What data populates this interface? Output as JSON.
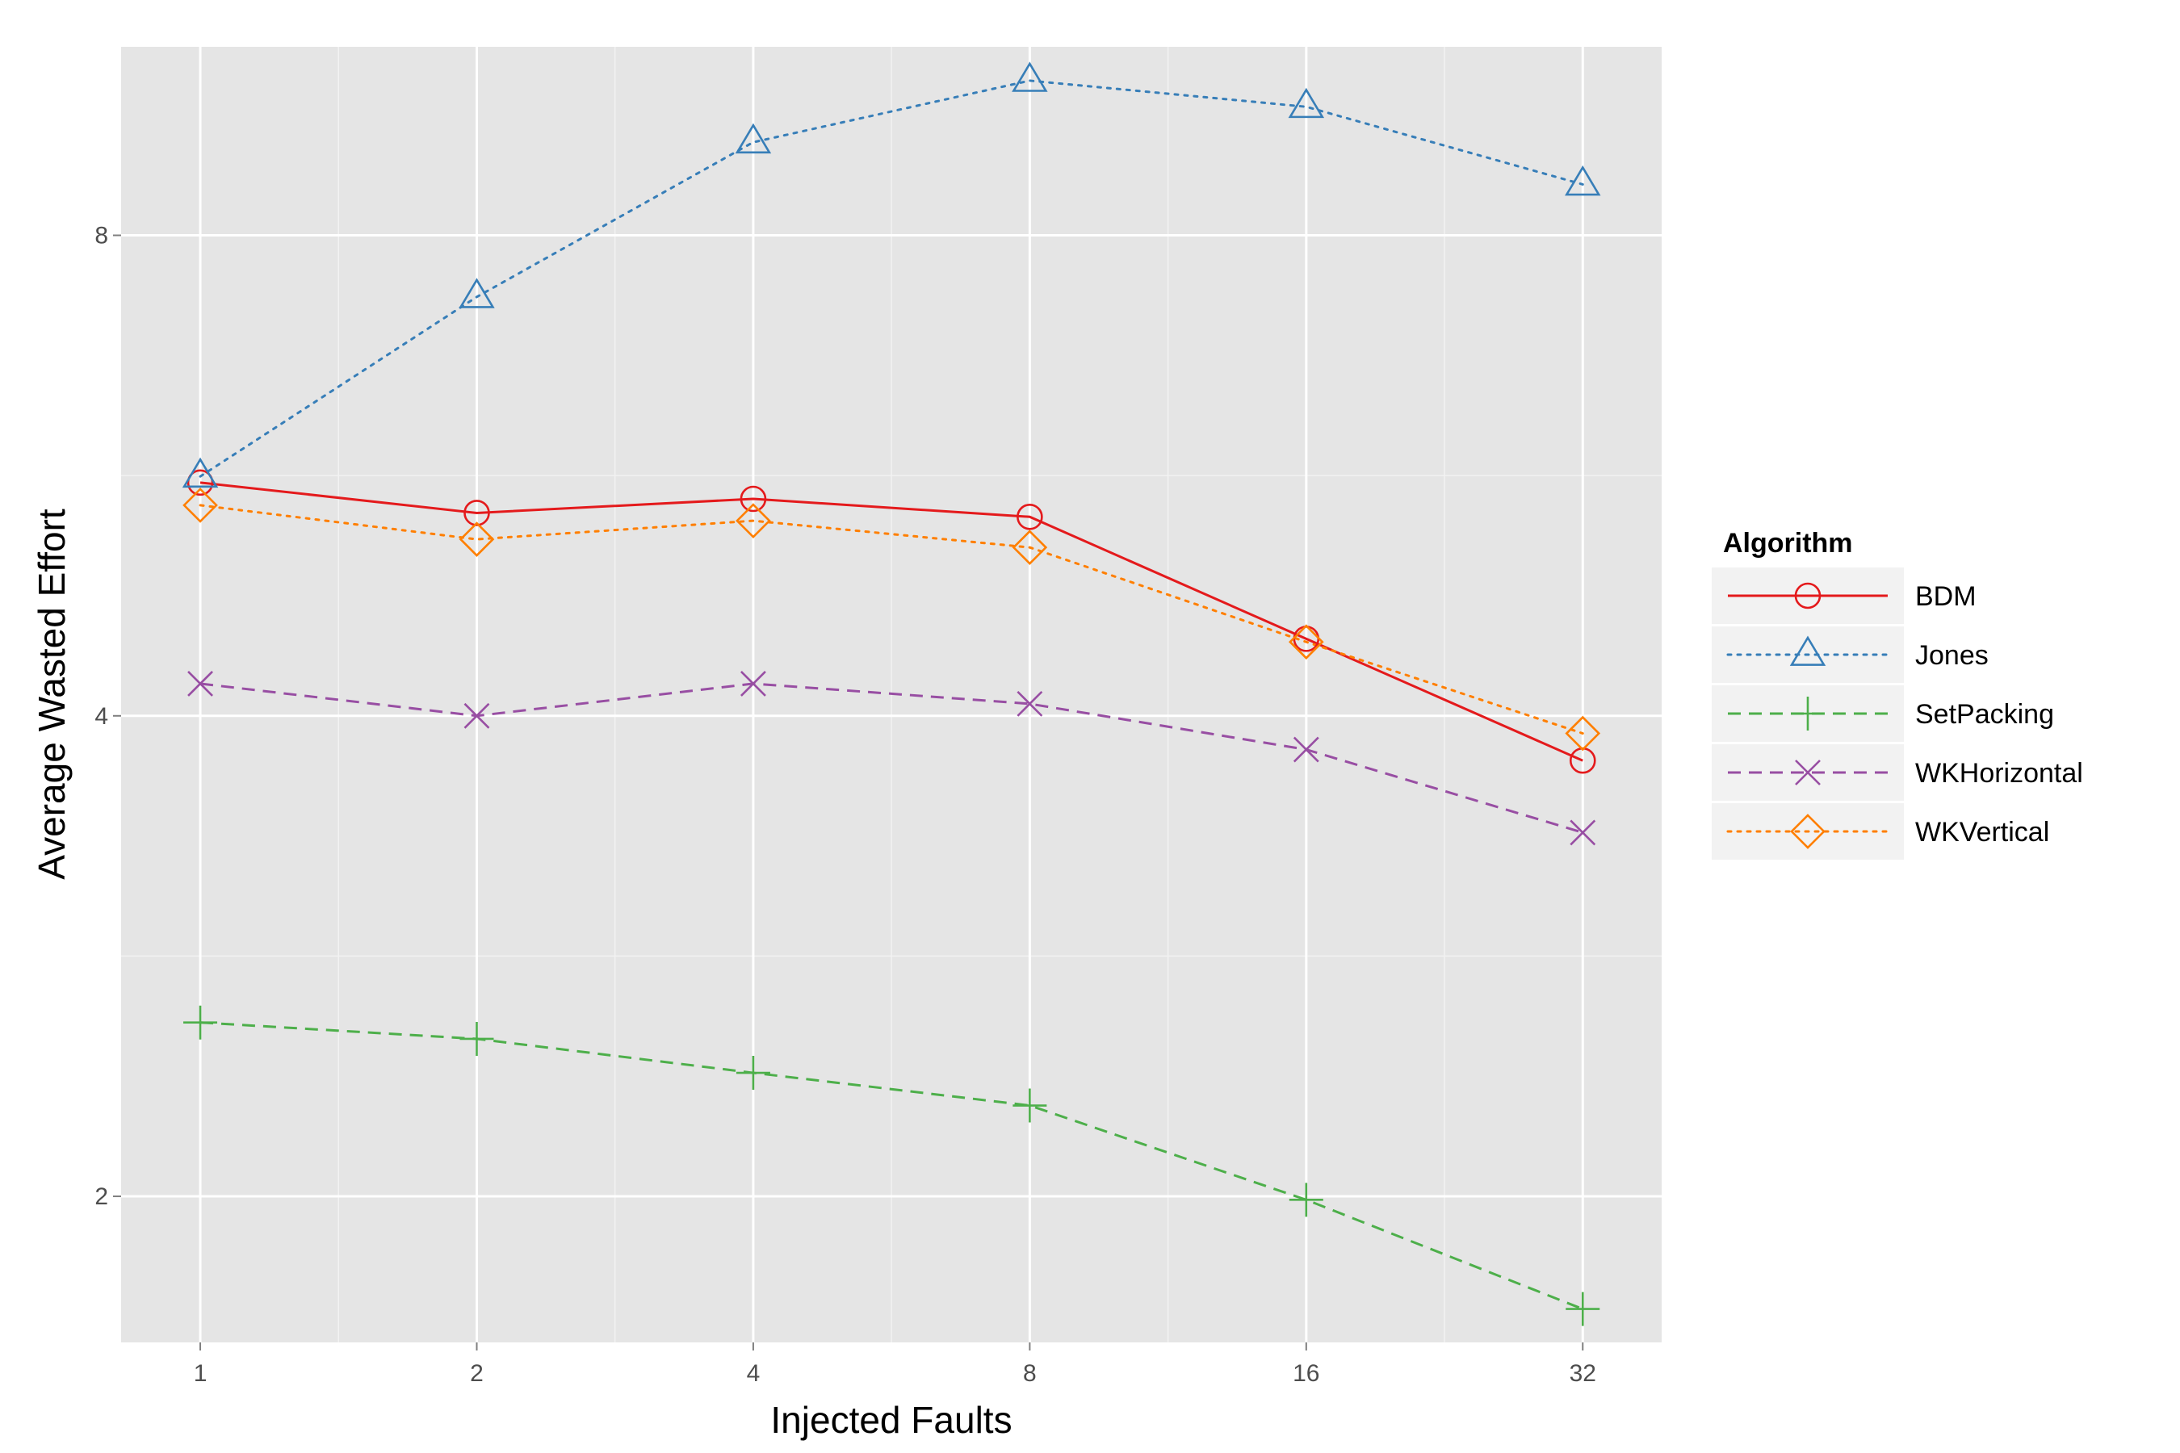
{
  "chart_data": {
    "type": "line",
    "title": "",
    "xlabel": "Injected Faults",
    "ylabel": "Average Wasted Effort",
    "x_scale": "log2",
    "y_scale": "log2",
    "x": [
      1,
      2,
      4,
      8,
      16,
      32
    ],
    "x_tick_labels": [
      "1",
      "2",
      "4",
      "8",
      "16",
      "32"
    ],
    "y_ticks": [
      2,
      4,
      8
    ],
    "y_tick_labels": [
      "2",
      "4",
      "8"
    ],
    "xlim": [
      0.82,
      39
    ],
    "ylim": [
      1.62,
      10.5
    ],
    "grid": true,
    "legend_title": "Algorithm",
    "legend_position": "right",
    "series": [
      {
        "name": "BDM",
        "values": [
          5.6,
          5.36,
          5.47,
          5.33,
          4.47,
          3.75
        ],
        "color": "#e41a1c",
        "marker": "circle",
        "dash": "solid"
      },
      {
        "name": "Jones",
        "values": [
          5.65,
          7.32,
          9.15,
          10.0,
          9.63,
          8.61
        ],
        "color": "#377eb8",
        "marker": "triangle",
        "dash": "dotted"
      },
      {
        "name": "SetPacking",
        "values": [
          2.57,
          2.51,
          2.39,
          2.28,
          1.99,
          1.7
        ],
        "color": "#4daf4a",
        "marker": "plus",
        "dash": "dashed"
      },
      {
        "name": "WKHorizontal",
        "values": [
          4.19,
          4.0,
          4.19,
          4.07,
          3.81,
          3.38
        ],
        "color": "#984ea3",
        "marker": "x",
        "dash": "dashed"
      },
      {
        "name": "WKVertical",
        "values": [
          5.42,
          5.16,
          5.3,
          5.1,
          4.45,
          3.9
        ],
        "color": "#ff7f00",
        "marker": "diamond",
        "dash": "dotted"
      }
    ]
  }
}
